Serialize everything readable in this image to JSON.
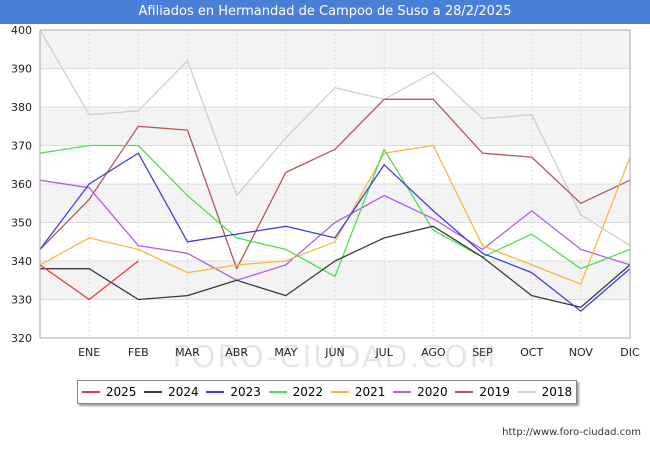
{
  "header": {
    "title": "Afiliados en Hermandad de Campoo de Suso a 28/2/2025"
  },
  "footer": {
    "url": "http://www.foro-ciudad.com"
  },
  "watermark": "FORO-CIUDAD.COM",
  "chart_data": {
    "type": "line",
    "title": "Afiliados en Hermandad de Campoo de Suso a 28/2/2025",
    "categories": [
      "",
      "ENE",
      "FEB",
      "MAR",
      "ABR",
      "MAY",
      "JUN",
      "JUL",
      "AGO",
      "SEP",
      "OCT",
      "NOV",
      "DIC"
    ],
    "ylim": [
      320,
      400
    ],
    "yticks": [
      320,
      330,
      340,
      350,
      360,
      370,
      380,
      390,
      400
    ],
    "grid": true,
    "legend_position": "bottom",
    "series": [
      {
        "name": "2025",
        "color": "#e03c3c",
        "values": [
          339,
          330,
          340,
          null,
          null,
          null,
          null,
          null,
          null,
          null,
          null,
          null,
          null
        ]
      },
      {
        "name": "2024",
        "color": "#3a3a3a",
        "values": [
          338,
          338,
          330,
          331,
          335,
          331,
          340,
          346,
          349,
          341,
          331,
          328,
          339
        ]
      },
      {
        "name": "2023",
        "color": "#3f3fe0",
        "values": [
          343,
          360,
          368,
          345,
          347,
          349,
          346,
          365,
          353,
          342,
          337,
          327,
          338
        ]
      },
      {
        "name": "2022",
        "color": "#4ee04e",
        "values": [
          368,
          370,
          370,
          357,
          346,
          343,
          336,
          369,
          348,
          341,
          347,
          338,
          343
        ]
      },
      {
        "name": "2021",
        "color": "#f5b942",
        "values": [
          339,
          346,
          343,
          337,
          339,
          340,
          345,
          368,
          370,
          344,
          339,
          334,
          367
        ]
      },
      {
        "name": "2020",
        "color": "#b35fe3",
        "values": [
          361,
          359,
          344,
          342,
          335,
          339,
          350,
          357,
          351,
          343,
          353,
          343,
          339
        ]
      },
      {
        "name": "2019",
        "color": "#b05a5a",
        "values": [
          343,
          356,
          375,
          374,
          338,
          363,
          369,
          382,
          382,
          368,
          367,
          355,
          361
        ]
      },
      {
        "name": "2018",
        "color": "#cfcfcf",
        "values": [
          400,
          378,
          379,
          392,
          357,
          372,
          385,
          382,
          389,
          377,
          378,
          352,
          344
        ]
      }
    ]
  }
}
